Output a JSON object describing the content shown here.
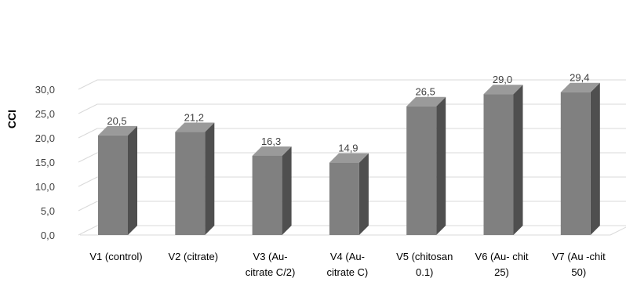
{
  "chart_data": {
    "type": "bar",
    "title": "",
    "xlabel": "",
    "ylabel": "CCI",
    "ylim": [
      0,
      30
    ],
    "yticks": [
      "0,0",
      "5,0",
      "10,0",
      "15,0",
      "20,0",
      "25,0",
      "30,0"
    ],
    "grid": true,
    "style": "3d-column",
    "categories": [
      [
        "V1 (control)"
      ],
      [
        "V2 (citrate)"
      ],
      [
        "V3 (Au-",
        "citrate C/2)"
      ],
      [
        "V4 (Au-",
        "citrate C)"
      ],
      [
        "V5 (chitosan",
        "0.1)"
      ],
      [
        "V6 (Au- chit",
        "25)"
      ],
      [
        "V7 (Au -chit",
        "50)"
      ]
    ],
    "values": [
      20.5,
      21.2,
      16.3,
      14.9,
      26.5,
      29.0,
      29.4
    ],
    "data_labels": [
      "20,5",
      "21,2",
      "16,3",
      "14,9",
      "26,5",
      "29,0",
      "29,4"
    ],
    "colors": {
      "bar_front": "#808080",
      "bar_side": "#4f4f4f",
      "bar_top": "#9a9a9a",
      "grid": "#d9d9d9"
    }
  }
}
